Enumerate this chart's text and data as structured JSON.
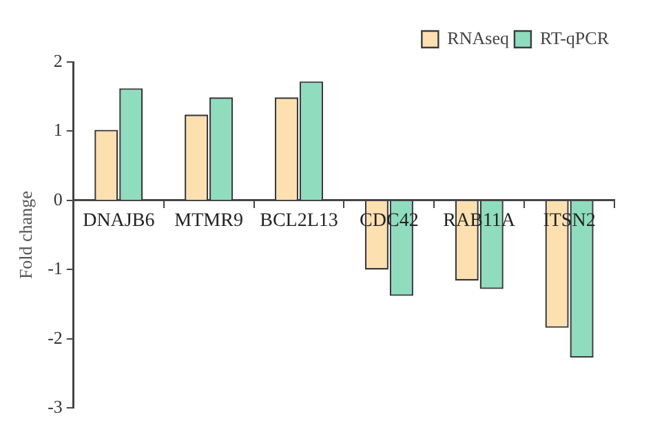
{
  "chart_data": {
    "type": "bar",
    "ylabel": "Fold change",
    "categories": [
      "DNAJB6",
      "MTMR9",
      "BCL2L13",
      "CDC42",
      "RAB11A",
      "ITSN2"
    ],
    "series": [
      {
        "name": "RNAseq",
        "color": "#fde0b0",
        "values": [
          1.02,
          1.24,
          1.49,
          -1.0,
          -1.16,
          -1.84
        ]
      },
      {
        "name": "RT-qPCR",
        "color": "#8fdcbf",
        "values": [
          1.62,
          1.49,
          1.72,
          -1.38,
          -1.28,
          -2.27
        ]
      }
    ],
    "ylim": [
      -3,
      2
    ],
    "yticks": [
      -3,
      -2,
      -1,
      0,
      1,
      2
    ],
    "grid": false,
    "legend": "top right"
  }
}
